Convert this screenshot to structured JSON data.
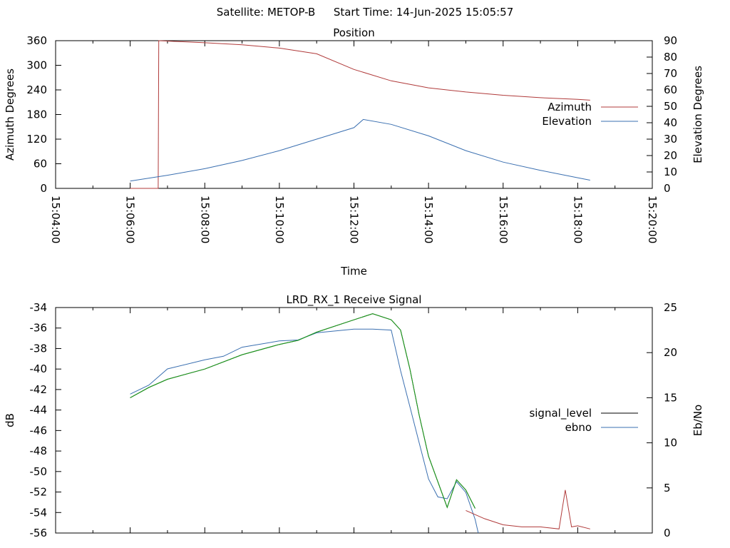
{
  "header": {
    "satellite_text": "Satellite: METOP-B",
    "start_time_text": "Start Time: 14-Jun-2025 15:05:57"
  },
  "colors": {
    "azimuth": "#b03a3a",
    "elevation": "#3a6fb0",
    "signal_level": "#000000",
    "ebno": "#3a6fb0",
    "green_trace": "#1aa01a",
    "red_trace": "#b03a3a"
  },
  "chart_data": [
    {
      "type": "line",
      "title": "Position",
      "xlabel": "Time",
      "ylabel": "Azimuth Degrees",
      "y2label": "Elevation Degrees",
      "xlim": [
        "15:04:00",
        "15:20:00"
      ],
      "ylim": [
        0,
        360
      ],
      "y2lim": [
        0,
        90
      ],
      "xticks": [
        "15:04:00",
        "15:06:00",
        "15:08:00",
        "15:10:00",
        "15:12:00",
        "15:14:00",
        "15:16:00",
        "15:18:00",
        "15:20:00"
      ],
      "yticks": [
        0,
        60,
        120,
        180,
        240,
        300,
        360
      ],
      "y2ticks": [
        0,
        10,
        20,
        30,
        40,
        50,
        60,
        70,
        80,
        90
      ],
      "legend_position": "right",
      "series": [
        {
          "name": "Azimuth",
          "axis": "y",
          "color": "#b03a3a",
          "x": [
            "15:06:00",
            "15:06:45",
            "15:06:46",
            "15:08:00",
            "15:09:00",
            "15:10:00",
            "15:11:00",
            "15:12:00",
            "15:13:00",
            "15:14:00",
            "15:15:00",
            "15:16:00",
            "15:17:00",
            "15:18:00",
            "15:18:20"
          ],
          "values": [
            0,
            0,
            360,
            355,
            350,
            342,
            328,
            290,
            262,
            245,
            235,
            227,
            221,
            217,
            215
          ]
        },
        {
          "name": "Elevation",
          "axis": "y2",
          "color": "#3a6fb0",
          "x": [
            "15:06:00",
            "15:07:00",
            "15:08:00",
            "15:09:00",
            "15:10:00",
            "15:11:00",
            "15:12:00",
            "15:12:15",
            "15:13:00",
            "15:14:00",
            "15:15:00",
            "15:16:00",
            "15:17:00",
            "15:18:00",
            "15:18:20"
          ],
          "values": [
            4.5,
            8,
            12,
            17,
            23,
            30,
            37,
            42,
            39,
            32,
            23,
            16,
            11,
            6.5,
            5
          ]
        }
      ]
    },
    {
      "type": "line",
      "title": "LRD_RX_1 Receive Signal",
      "xlabel": "",
      "ylabel": "dB",
      "y2label": "Eb/No",
      "xlim": [
        "15:04:00",
        "15:20:00"
      ],
      "ylim": [
        -56,
        -34
      ],
      "y2lim": [
        0,
        25
      ],
      "yticks": [
        -56,
        -54,
        -52,
        -50,
        -48,
        -46,
        -44,
        -42,
        -40,
        -38,
        -36,
        -34
      ],
      "y2ticks": [
        0,
        5,
        10,
        15,
        20,
        25
      ],
      "legend_position": "right",
      "series": [
        {
          "name": "signal_level",
          "axis": "y",
          "color": "#000000",
          "x": [
            "15:06:00",
            "15:06:30",
            "15:07:00",
            "15:08:00",
            "15:09:00",
            "15:10:00",
            "15:10:30",
            "15:11:00",
            "15:12:00",
            "15:12:30",
            "15:13:00",
            "15:13:15",
            "15:13:30",
            "15:13:45",
            "15:14:00",
            "15:14:15",
            "15:14:30",
            "15:14:45",
            "15:15:00",
            "15:15:15"
          ],
          "values": [
            -42.8,
            -41.8,
            -41,
            -40,
            -38.6,
            -37.6,
            -37.2,
            -36.4,
            -35.2,
            -34.6,
            -35.2,
            -36.2,
            -40,
            -44.5,
            -48.5,
            -51,
            -53.5,
            -50.8,
            -51.8,
            -53.6
          ]
        },
        {
          "name": "ebno",
          "axis": "y2",
          "color": "#3a6fb0",
          "x": [
            "15:06:00",
            "15:06:30",
            "15:07:00",
            "15:08:00",
            "15:08:30",
            "15:09:00",
            "15:10:00",
            "15:10:30",
            "15:11:00",
            "15:12:00",
            "15:12:30",
            "15:13:00",
            "15:13:15",
            "15:13:30",
            "15:13:45",
            "15:14:00",
            "15:14:15",
            "15:14:30",
            "15:14:45",
            "15:15:00",
            "15:15:15",
            "15:15:20"
          ],
          "values": [
            15.4,
            16.4,
            18.2,
            19.2,
            19.6,
            20.6,
            21.3,
            21.4,
            22.2,
            22.6,
            22.6,
            22.5,
            18,
            14,
            10,
            6,
            4,
            3.8,
            5.7,
            4.5,
            1.5,
            0
          ]
        },
        {
          "name": "",
          "axis": "y",
          "color": "#1aa01a",
          "x": [
            "15:06:00",
            "15:06:30",
            "15:07:00",
            "15:08:00",
            "15:09:00",
            "15:10:00",
            "15:10:30",
            "15:11:00",
            "15:12:00",
            "15:12:30",
            "15:13:00",
            "15:13:15",
            "15:13:30",
            "15:13:45",
            "15:14:00",
            "15:14:15",
            "15:14:30",
            "15:14:45",
            "15:15:00",
            "15:15:15"
          ],
          "values": [
            -42.8,
            -41.8,
            -41,
            -40,
            -38.6,
            -37.6,
            -37.2,
            -36.4,
            -35.2,
            -34.6,
            -35.2,
            -36.2,
            -40,
            -44.5,
            -48.5,
            -51,
            -53.5,
            -50.8,
            -51.8,
            -53.6
          ]
        },
        {
          "name": "",
          "axis": "y",
          "color": "#b03a3a",
          "x": [
            "15:15:00",
            "15:15:30",
            "15:16:00",
            "15:16:30",
            "15:17:00",
            "15:17:30",
            "15:17:40",
            "15:17:50",
            "15:18:00",
            "15:18:20"
          ],
          "values": [
            -53.8,
            -54.6,
            -55.2,
            -55.4,
            -55.4,
            -55.6,
            -51.8,
            -55.4,
            -55.3,
            -55.6
          ]
        }
      ]
    }
  ]
}
